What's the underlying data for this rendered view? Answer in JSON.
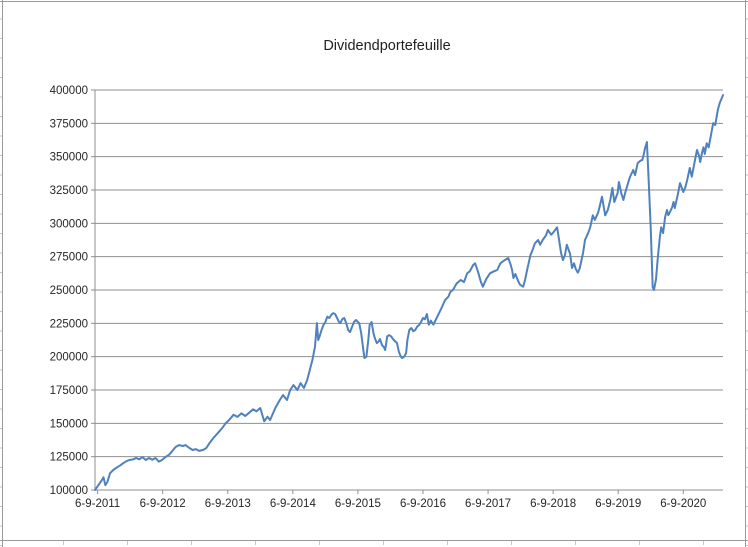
{
  "sheet": {
    "description": "empty spreadsheet background with gridline slivers at the edges",
    "gridline_color": "#9b9b9b",
    "stub_color": "#c6c6c6"
  },
  "chart": {
    "title": "Dividendportefeuille",
    "background": "#ffffff",
    "axis_color": "#8f8f8f",
    "gridline_color": "#8f8f8f",
    "tick_label_color": "#262626"
  },
  "chart_data": {
    "type": "line",
    "title": "Dividendportefeuille",
    "xlabel": "",
    "ylabel": "",
    "grid": "horizontal",
    "legend": "none",
    "ylim": [
      100000,
      400000
    ],
    "y_tick_step": 25000,
    "y_ticks": [
      100000,
      125000,
      150000,
      175000,
      200000,
      225000,
      250000,
      275000,
      300000,
      325000,
      350000,
      375000,
      400000
    ],
    "xlim": [
      2011.65,
      2021.3
    ],
    "x_tick_labels": [
      "6-9-2011",
      "6-9-2012",
      "6-9-2013",
      "6-9-2014",
      "6-9-2015",
      "6-9-2016",
      "6-9-2017",
      "6-9-2018",
      "6-9-2019",
      "6-9-2020"
    ],
    "x_tick_positions": [
      2011.69,
      2012.69,
      2013.69,
      2014.69,
      2015.69,
      2016.69,
      2017.69,
      2018.69,
      2019.69,
      2020.69
    ],
    "series": [
      {
        "name": "Dividendportefeuille",
        "color": "#4F81BD",
        "width": 2,
        "points": [
          [
            2011.65,
            100000
          ],
          [
            2011.7,
            103500
          ],
          [
            2011.75,
            107000
          ],
          [
            2011.78,
            109500
          ],
          [
            2011.81,
            103700
          ],
          [
            2011.84,
            106000
          ],
          [
            2011.88,
            112500
          ],
          [
            2011.93,
            115000
          ],
          [
            2011.99,
            117000
          ],
          [
            2012.04,
            118500
          ],
          [
            2012.08,
            120000
          ],
          [
            2012.13,
            121500
          ],
          [
            2012.18,
            122500
          ],
          [
            2012.24,
            123000
          ],
          [
            2012.28,
            124000
          ],
          [
            2012.33,
            123000
          ],
          [
            2012.38,
            124700
          ],
          [
            2012.43,
            122500
          ],
          [
            2012.48,
            124000
          ],
          [
            2012.53,
            122700
          ],
          [
            2012.58,
            124000
          ],
          [
            2012.63,
            121300
          ],
          [
            2012.68,
            122500
          ],
          [
            2012.73,
            124700
          ],
          [
            2012.79,
            126500
          ],
          [
            2012.85,
            130000
          ],
          [
            2012.89,
            132300
          ],
          [
            2012.94,
            133700
          ],
          [
            2013.0,
            133000
          ],
          [
            2013.04,
            133700
          ],
          [
            2013.1,
            131500
          ],
          [
            2013.15,
            130000
          ],
          [
            2013.2,
            130700
          ],
          [
            2013.25,
            129300
          ],
          [
            2013.31,
            130000
          ],
          [
            2013.36,
            131500
          ],
          [
            2013.41,
            135200
          ],
          [
            2013.47,
            139000
          ],
          [
            2013.51,
            141200
          ],
          [
            2013.57,
            144500
          ],
          [
            2013.62,
            147500
          ],
          [
            2013.66,
            150200
          ],
          [
            2013.71,
            152500
          ],
          [
            2013.78,
            156500
          ],
          [
            2013.84,
            154800
          ],
          [
            2013.9,
            157500
          ],
          [
            2013.96,
            155500
          ],
          [
            2014.02,
            158000
          ],
          [
            2014.08,
            160500
          ],
          [
            2014.13,
            159000
          ],
          [
            2014.19,
            161500
          ],
          [
            2014.25,
            151500
          ],
          [
            2014.3,
            155000
          ],
          [
            2014.34,
            152500
          ],
          [
            2014.42,
            161500
          ],
          [
            2014.49,
            167500
          ],
          [
            2014.54,
            171200
          ],
          [
            2014.6,
            167500
          ],
          [
            2014.65,
            175000
          ],
          [
            2014.7,
            178700
          ],
          [
            2014.76,
            175000
          ],
          [
            2014.81,
            180200
          ],
          [
            2014.86,
            176500
          ],
          [
            2014.91,
            182500
          ],
          [
            2014.95,
            190000
          ],
          [
            2014.99,
            197500
          ],
          [
            2015.03,
            207500
          ],
          [
            2015.06,
            225200
          ],
          [
            2015.08,
            212500
          ],
          [
            2015.1,
            215000
          ],
          [
            2015.13,
            220000
          ],
          [
            2015.16,
            223700
          ],
          [
            2015.19,
            226000
          ],
          [
            2015.22,
            230000
          ],
          [
            2015.25,
            229000
          ],
          [
            2015.28,
            231300
          ],
          [
            2015.31,
            232700
          ],
          [
            2015.34,
            232000
          ],
          [
            2015.37,
            229000
          ],
          [
            2015.4,
            226000
          ],
          [
            2015.42,
            225200
          ],
          [
            2015.45,
            228200
          ],
          [
            2015.48,
            229000
          ],
          [
            2015.51,
            225200
          ],
          [
            2015.54,
            220000
          ],
          [
            2015.57,
            218500
          ],
          [
            2015.6,
            222500
          ],
          [
            2015.63,
            226000
          ],
          [
            2015.66,
            227500
          ],
          [
            2015.69,
            226000
          ],
          [
            2015.71,
            225200
          ],
          [
            2015.74,
            217500
          ],
          [
            2015.77,
            206500
          ],
          [
            2015.79,
            199000
          ],
          [
            2015.82,
            200000
          ],
          [
            2015.85,
            212500
          ],
          [
            2015.87,
            223700
          ],
          [
            2015.9,
            226000
          ],
          [
            2015.93,
            217500
          ],
          [
            2015.95,
            214000
          ],
          [
            2015.98,
            210200
          ],
          [
            2016.01,
            211500
          ],
          [
            2016.03,
            213200
          ],
          [
            2016.06,
            208700
          ],
          [
            2016.09,
            207200
          ],
          [
            2016.11,
            205000
          ],
          [
            2016.14,
            215200
          ],
          [
            2016.17,
            216200
          ],
          [
            2016.2,
            215200
          ],
          [
            2016.23,
            213200
          ],
          [
            2016.26,
            211500
          ],
          [
            2016.29,
            210200
          ],
          [
            2016.32,
            203500
          ],
          [
            2016.35,
            200000
          ],
          [
            2016.37,
            199000
          ],
          [
            2016.4,
            200000
          ],
          [
            2016.43,
            202500
          ],
          [
            2016.45,
            212500
          ],
          [
            2016.48,
            220000
          ],
          [
            2016.51,
            221500
          ],
          [
            2016.54,
            219000
          ],
          [
            2016.57,
            220000
          ],
          [
            2016.6,
            222500
          ],
          [
            2016.63,
            223700
          ],
          [
            2016.66,
            226000
          ],
          [
            2016.69,
            229000
          ],
          [
            2016.72,
            228000
          ],
          [
            2016.75,
            232000
          ],
          [
            2016.78,
            224000
          ],
          [
            2016.81,
            227000
          ],
          [
            2016.85,
            224000
          ],
          [
            2016.91,
            230000
          ],
          [
            2016.97,
            236000
          ],
          [
            2017.03,
            242500
          ],
          [
            2017.08,
            245000
          ],
          [
            2017.11,
            248500
          ],
          [
            2017.15,
            250000
          ],
          [
            2017.21,
            255000
          ],
          [
            2017.27,
            257500
          ],
          [
            2017.32,
            256000
          ],
          [
            2017.37,
            262500
          ],
          [
            2017.41,
            264000
          ],
          [
            2017.46,
            268700
          ],
          [
            2017.49,
            270000
          ],
          [
            2017.54,
            263000
          ],
          [
            2017.58,
            256000
          ],
          [
            2017.61,
            252500
          ],
          [
            2017.66,
            258000
          ],
          [
            2017.72,
            262500
          ],
          [
            2017.78,
            264000
          ],
          [
            2017.83,
            265000
          ],
          [
            2017.88,
            270000
          ],
          [
            2017.92,
            271500
          ],
          [
            2017.95,
            272500
          ],
          [
            2018.0,
            274000
          ],
          [
            2018.03,
            270000
          ],
          [
            2018.06,
            265000
          ],
          [
            2018.08,
            259000
          ],
          [
            2018.11,
            262000
          ],
          [
            2018.15,
            257000
          ],
          [
            2018.18,
            254000
          ],
          [
            2018.23,
            252500
          ],
          [
            2018.26,
            258000
          ],
          [
            2018.29,
            265000
          ],
          [
            2018.34,
            276000
          ],
          [
            2018.38,
            281000
          ],
          [
            2018.41,
            285000
          ],
          [
            2018.46,
            287500
          ],
          [
            2018.49,
            284000
          ],
          [
            2018.53,
            287500
          ],
          [
            2018.58,
            291000
          ],
          [
            2018.61,
            295000
          ],
          [
            2018.66,
            291500
          ],
          [
            2018.69,
            293000
          ],
          [
            2018.75,
            297000
          ],
          [
            2018.78,
            288000
          ],
          [
            2018.81,
            278000
          ],
          [
            2018.84,
            272500
          ],
          [
            2018.87,
            276000
          ],
          [
            2018.9,
            284000
          ],
          [
            2018.95,
            277000
          ],
          [
            2018.98,
            266500
          ],
          [
            2019.01,
            270000
          ],
          [
            2019.04,
            265500
          ],
          [
            2019.07,
            263000
          ],
          [
            2019.1,
            266500
          ],
          [
            2019.15,
            278000
          ],
          [
            2019.18,
            287500
          ],
          [
            2019.23,
            293000
          ],
          [
            2019.26,
            297000
          ],
          [
            2019.3,
            306000
          ],
          [
            2019.33,
            302500
          ],
          [
            2019.38,
            308000
          ],
          [
            2019.41,
            313700
          ],
          [
            2019.44,
            320000
          ],
          [
            2019.49,
            306000
          ],
          [
            2019.53,
            310000
          ],
          [
            2019.57,
            318000
          ],
          [
            2019.6,
            326500
          ],
          [
            2019.63,
            316000
          ],
          [
            2019.68,
            322700
          ],
          [
            2019.7,
            331000
          ],
          [
            2019.74,
            322000
          ],
          [
            2019.77,
            317500
          ],
          [
            2019.8,
            323500
          ],
          [
            2019.84,
            330000
          ],
          [
            2019.87,
            334700
          ],
          [
            2019.92,
            340000
          ],
          [
            2019.95,
            336200
          ],
          [
            2019.99,
            345200
          ],
          [
            2020.03,
            347000
          ],
          [
            2020.06,
            347500
          ],
          [
            2020.08,
            351200
          ],
          [
            2020.1,
            356000
          ],
          [
            2020.13,
            361000
          ],
          [
            2020.16,
            330000
          ],
          [
            2020.19,
            295000
          ],
          [
            2020.22,
            252000
          ],
          [
            2020.24,
            250000
          ],
          [
            2020.27,
            258000
          ],
          [
            2020.3,
            275000
          ],
          [
            2020.33,
            290000
          ],
          [
            2020.35,
            297000
          ],
          [
            2020.38,
            292700
          ],
          [
            2020.41,
            304700
          ],
          [
            2020.44,
            310000
          ],
          [
            2020.46,
            306200
          ],
          [
            2020.49,
            309000
          ],
          [
            2020.52,
            312200
          ],
          [
            2020.54,
            316000
          ],
          [
            2020.56,
            311500
          ],
          [
            2020.61,
            322700
          ],
          [
            2020.64,
            330200
          ],
          [
            2020.69,
            323500
          ],
          [
            2020.72,
            327000
          ],
          [
            2020.75,
            332500
          ],
          [
            2020.79,
            341500
          ],
          [
            2020.82,
            335000
          ],
          [
            2020.87,
            347500
          ],
          [
            2020.9,
            355000
          ],
          [
            2020.93,
            351000
          ],
          [
            2020.95,
            346000
          ],
          [
            2020.98,
            353500
          ],
          [
            2021.0,
            357000
          ],
          [
            2021.02,
            352000
          ],
          [
            2021.05,
            360000
          ],
          [
            2021.08,
            357000
          ],
          [
            2021.13,
            370000
          ],
          [
            2021.15,
            375200
          ],
          [
            2021.18,
            373700
          ],
          [
            2021.22,
            385000
          ],
          [
            2021.25,
            390200
          ],
          [
            2021.3,
            396200
          ]
        ]
      }
    ]
  }
}
